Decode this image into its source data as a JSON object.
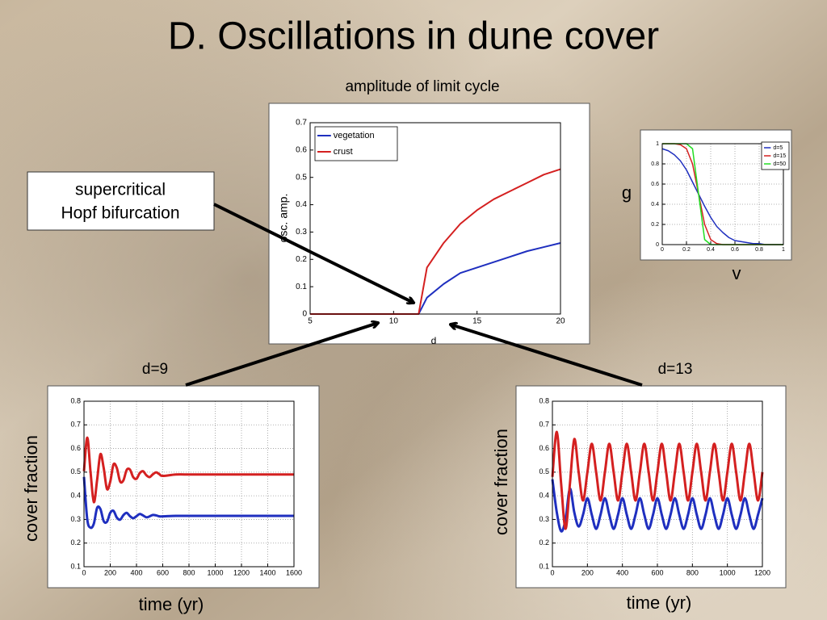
{
  "slide": {
    "title": "D. Oscillations in dune cover",
    "annotation": [
      "supercritical",
      "Hopf bifurcation"
    ]
  },
  "chart_data": [
    {
      "type": "line",
      "title": "amplitude of limit cycle",
      "xlabel": "d",
      "ylabel": "osc. amp.",
      "x": [
        5,
        11.5,
        12,
        13,
        14,
        15,
        16,
        17,
        18,
        19,
        20
      ],
      "series": [
        {
          "name": "vegetation",
          "color": "#1f2fbf",
          "values": [
            0,
            0,
            0.06,
            0.11,
            0.15,
            0.17,
            0.19,
            0.21,
            0.23,
            0.245,
            0.26
          ]
        },
        {
          "name": "crust",
          "color": "#d42020",
          "values": [
            0,
            0,
            0.17,
            0.26,
            0.33,
            0.38,
            0.42,
            0.45,
            0.48,
            0.51,
            0.53
          ]
        }
      ],
      "xlim": [
        5,
        20
      ],
      "ylim": [
        0,
        0.7
      ],
      "xticks": [
        5,
        10,
        15,
        20
      ],
      "yticks": [
        0,
        0.1,
        0.2,
        0.3,
        0.4,
        0.5,
        0.6,
        0.7
      ],
      "grid": false,
      "legend": "upper left"
    },
    {
      "type": "line",
      "xlabel": "v",
      "ylabel": "g",
      "x": [
        0,
        0.05,
        0.1,
        0.15,
        0.2,
        0.25,
        0.3,
        0.35,
        0.4,
        0.45,
        0.5,
        0.55,
        0.6,
        0.65,
        0.7,
        0.75,
        0.8,
        0.85,
        0.9,
        0.95,
        1
      ],
      "series": [
        {
          "name": "d=5",
          "color": "#1f2fbf",
          "values": [
            0.95,
            0.93,
            0.89,
            0.83,
            0.74,
            0.62,
            0.5,
            0.38,
            0.27,
            0.18,
            0.12,
            0.07,
            0.04,
            0.03,
            0.02,
            0.01,
            0.01,
            0,
            0,
            0,
            0
          ]
        },
        {
          "name": "d=15",
          "color": "#d42020",
          "values": [
            1,
            1,
            1,
            0.99,
            0.95,
            0.8,
            0.5,
            0.2,
            0.05,
            0.01,
            0,
            0,
            0,
            0,
            0,
            0,
            0,
            0,
            0,
            0,
            0
          ]
        },
        {
          "name": "d=50",
          "color": "#22dd22",
          "values": [
            1,
            1,
            1,
            1,
            1,
            0.95,
            0.5,
            0.05,
            0,
            0,
            0,
            0,
            0,
            0,
            0,
            0,
            0,
            0,
            0,
            0,
            0
          ]
        }
      ],
      "xlim": [
        0,
        1
      ],
      "ylim": [
        0,
        1
      ],
      "xticks": [
        0,
        0.2,
        0.4,
        0.6,
        0.8,
        1
      ],
      "yticks": [
        0,
        0.2,
        0.4,
        0.6,
        0.8,
        1
      ],
      "grid": true,
      "legend": "upper right"
    },
    {
      "type": "line",
      "title": "d=9",
      "xlabel": "time (yr)",
      "ylabel": "cover fraction",
      "x": [
        0,
        25,
        50,
        75,
        100,
        125,
        150,
        175,
        200,
        225,
        250,
        275,
        300,
        325,
        350,
        375,
        400,
        425,
        450,
        475,
        500,
        525,
        550,
        575,
        600,
        700,
        800,
        900,
        1000,
        1100,
        1200,
        1300,
        1400,
        1500,
        1600
      ],
      "series": [
        {
          "color": "#1f2fbf",
          "values": [
            0.48,
            0.3,
            0.265,
            0.282,
            0.349,
            0.344,
            0.293,
            0.29,
            0.328,
            0.336,
            0.308,
            0.299,
            0.318,
            0.328,
            0.314,
            0.305,
            0.314,
            0.323,
            0.317,
            0.309,
            0.313,
            0.319,
            0.317,
            0.313,
            0.313,
            0.315,
            0.315,
            0.315,
            0.315,
            0.315,
            0.315,
            0.315,
            0.315,
            0.315,
            0.315
          ]
        },
        {
          "color": "#d42020",
          "values": [
            0.504,
            0.646,
            0.5,
            0.373,
            0.467,
            0.576,
            0.518,
            0.429,
            0.46,
            0.533,
            0.518,
            0.461,
            0.465,
            0.509,
            0.511,
            0.479,
            0.472,
            0.496,
            0.504,
            0.487,
            0.479,
            0.491,
            0.499,
            0.491,
            0.484,
            0.49,
            0.49,
            0.49,
            0.49,
            0.49,
            0.49,
            0.49,
            0.49,
            0.49,
            0.49
          ]
        }
      ],
      "xlim": [
        0,
        1600
      ],
      "ylim": [
        0.1,
        0.8
      ],
      "xticks": [
        0,
        200,
        400,
        600,
        800,
        1000,
        1200,
        1400,
        1600
      ],
      "yticks": [
        0.1,
        0.2,
        0.3,
        0.4,
        0.5,
        0.6,
        0.7,
        0.8
      ],
      "grid": true
    },
    {
      "type": "line",
      "title": "d=13",
      "xlabel": "time (yr)",
      "ylabel": "cover fraction",
      "x": [
        0,
        25,
        50,
        75,
        100,
        125,
        150,
        175,
        200,
        225,
        250,
        275,
        300,
        325,
        350,
        375,
        400,
        425,
        450,
        475,
        500,
        525,
        550,
        575,
        600,
        625,
        650,
        675,
        700,
        725,
        750,
        775,
        800,
        825,
        850,
        875,
        900,
        925,
        950,
        975,
        1000,
        1025,
        1050,
        1075,
        1100,
        1125,
        1150,
        1175,
        1200
      ],
      "series": [
        {
          "color": "#1f2fbf",
          "values": [
            0.47,
            0.33,
            0.25,
            0.3,
            0.43,
            0.33,
            0.27,
            0.32,
            0.39,
            0.32,
            0.26,
            0.32,
            0.39,
            0.32,
            0.26,
            0.32,
            0.39,
            0.32,
            0.26,
            0.32,
            0.39,
            0.32,
            0.26,
            0.32,
            0.39,
            0.32,
            0.26,
            0.32,
            0.39,
            0.32,
            0.26,
            0.32,
            0.39,
            0.32,
            0.26,
            0.32,
            0.39,
            0.32,
            0.26,
            0.32,
            0.39,
            0.32,
            0.26,
            0.32,
            0.39,
            0.32,
            0.26,
            0.32,
            0.39
          ]
        },
        {
          "color": "#d42020",
          "values": [
            0.48,
            0.67,
            0.45,
            0.26,
            0.45,
            0.64,
            0.5,
            0.38,
            0.5,
            0.62,
            0.5,
            0.38,
            0.5,
            0.62,
            0.5,
            0.38,
            0.5,
            0.62,
            0.5,
            0.38,
            0.5,
            0.62,
            0.5,
            0.38,
            0.5,
            0.62,
            0.5,
            0.38,
            0.5,
            0.62,
            0.5,
            0.38,
            0.5,
            0.62,
            0.5,
            0.38,
            0.5,
            0.62,
            0.5,
            0.38,
            0.5,
            0.62,
            0.5,
            0.38,
            0.5,
            0.62,
            0.5,
            0.38,
            0.5
          ]
        }
      ],
      "xlim": [
        0,
        1200
      ],
      "ylim": [
        0.1,
        0.8
      ],
      "xticks": [
        0,
        200,
        400,
        600,
        800,
        1000,
        1200
      ],
      "yticks": [
        0.1,
        0.2,
        0.3,
        0.4,
        0.5,
        0.6,
        0.7,
        0.8
      ],
      "grid": true
    }
  ]
}
